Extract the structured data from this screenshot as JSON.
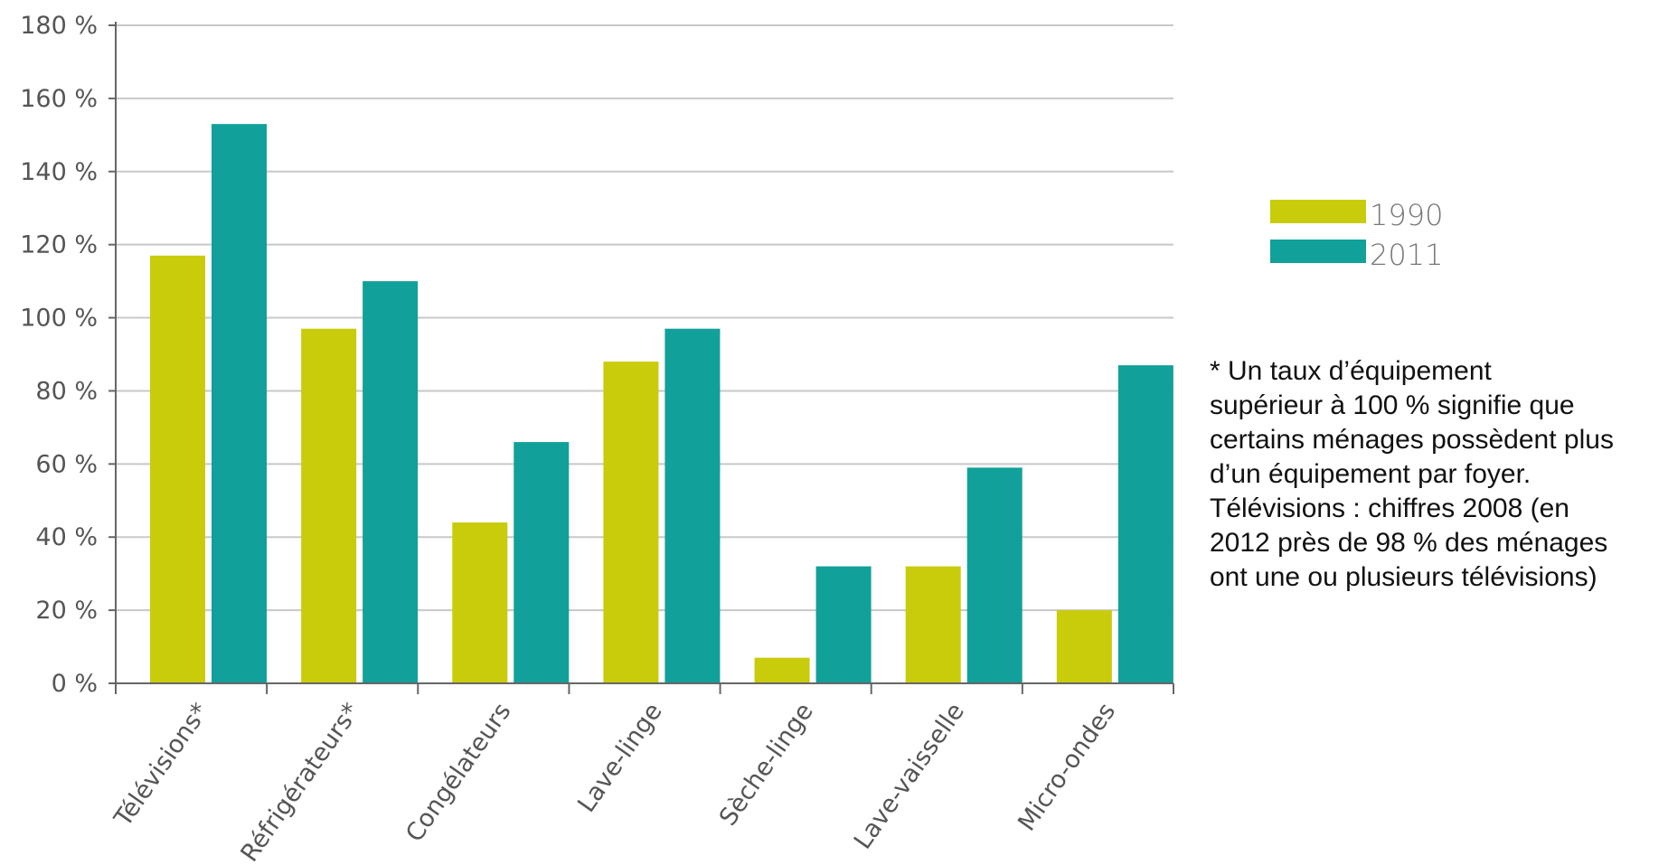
{
  "chart_data": {
    "type": "bar",
    "categories": [
      "Télévisions*",
      "Réfrigérateurs*",
      "Congélateurs",
      "Lave-linge",
      "Sèche-linge",
      "Lave-vaisselle",
      "Micro-ondes"
    ],
    "series": [
      {
        "name": "1990",
        "color": "#c8cc0a",
        "values": [
          117,
          97,
          44,
          88,
          7,
          32,
          20
        ]
      },
      {
        "name": "2011",
        "color": "#11a09a",
        "values": [
          153,
          110,
          66,
          97,
          32,
          59,
          87
        ]
      }
    ],
    "y_ticks": [
      "0 %",
      "20 %",
      "40 %",
      "60 %",
      "80 %",
      "100 %",
      "120 %",
      "140 %",
      "160 %",
      "180 %"
    ],
    "ylim": [
      0,
      180
    ],
    "grid": true,
    "legend_position": "right",
    "title": "",
    "xlabel": "",
    "ylabel": ""
  },
  "footnote": {
    "lines": [
      "* Un taux d’équipement",
      "supérieur à 100 % signifie que",
      "certains ménages possèdent plus",
      "d’un équipement par foyer.",
      "Télévisions : chiffres 2008 (en",
      "2012 près de 98 % des ménages",
      "ont une ou plusieurs télévisions)"
    ]
  },
  "colors": {
    "grid": "#c8c8c8",
    "axis": "#666666"
  }
}
